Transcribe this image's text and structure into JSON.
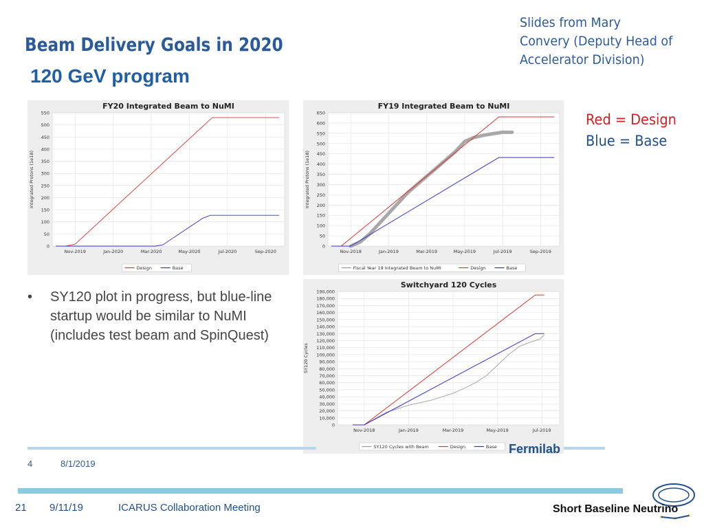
{
  "slide": {
    "title": "Beam Delivery Goals in 2020",
    "subtitle": "120 GeV program",
    "note_lines": [
      "Slides from Mary",
      "Convery (Deputy Head of",
      "Accelerator Division)"
    ],
    "legend_red": "Red = Design",
    "legend_blue": "Blue = Base",
    "bullet_symbol": "•",
    "bullet_text": "SY120 plot in progress, but blue-line startup would be similar to NuMI (includes test beam and SpinQuest)",
    "inner_footer": {
      "page": "4",
      "date": "8/1/2019",
      "logo_text": "Fermilab"
    },
    "footer": {
      "page": "21",
      "date": "9/11/19",
      "meeting": "ICARUS Collaboration Meeting",
      "logo_text": "Short Baseline Neutrino"
    }
  },
  "colors": {
    "design": "#e03030",
    "base": "#3030d0",
    "with_beam": "#999999",
    "title": "#2b5a9c"
  },
  "icons": {
    "fermilab": "fermilab-logo-icon",
    "sbn": "sbn-logo-icon"
  },
  "chart_data": [
    {
      "type": "line",
      "title": "FY20 Integrated Beam to NuMI",
      "ylabel": "Integrated Protons (1e18)",
      "xlabel": "",
      "x_ticks": [
        "Nov-2019",
        "Jan-2020",
        "Mar-2020",
        "May-2020",
        "Jul-2020",
        "Sep-2020"
      ],
      "x_tick_pos": [
        1,
        3,
        5,
        7,
        9,
        11
      ],
      "xlim": [
        -0.2,
        12
      ],
      "ylim": [
        0,
        550
      ],
      "y_ticks": [
        0,
        50,
        100,
        150,
        200,
        250,
        300,
        350,
        400,
        450,
        500,
        550
      ],
      "grid": true,
      "legend_position": "bottom",
      "legend": [
        {
          "name": "Design",
          "color": "#e03030"
        },
        {
          "name": "Base",
          "color": "#3030d0"
        }
      ],
      "series": [
        {
          "name": "Design",
          "color": "#e03030",
          "x": [
            0,
            0.5,
            1,
            8.2,
            11.7
          ],
          "y": [
            0,
            0,
            8,
            530,
            530
          ]
        },
        {
          "name": "Base",
          "color": "#3030d0",
          "x": [
            0,
            5.2,
            5.6,
            7.7,
            8.1,
            11.7
          ],
          "y": [
            0,
            0,
            5,
            115,
            127,
            127
          ]
        }
      ]
    },
    {
      "type": "line",
      "title": "FY19 Integrated Beam to NuMI",
      "ylabel": "Integrated Protons (1e18)",
      "xlabel": "",
      "x_ticks": [
        "Nov-2018",
        "Jan-2019",
        "Mar-2019",
        "May-2019",
        "Jul-2019",
        "Sep-2019"
      ],
      "x_tick_pos": [
        1,
        3,
        5,
        7,
        9,
        11
      ],
      "xlim": [
        -0.2,
        12
      ],
      "ylim": [
        0,
        650
      ],
      "y_ticks": [
        0,
        50,
        100,
        150,
        200,
        250,
        300,
        350,
        400,
        450,
        500,
        550,
        600,
        650
      ],
      "grid": true,
      "legend_position": "bottom",
      "legend": [
        {
          "name": "Fiscal Year 19 Integrated Beam to NuMI",
          "color": "#999999"
        },
        {
          "name": "Design",
          "color": "#e03030"
        },
        {
          "name": "Base",
          "color": "#3030d0"
        }
      ],
      "series": [
        {
          "name": "Fiscal Year 19 Integrated Beam to NuMI",
          "color": "#a8a8a8",
          "width": 5,
          "x": [
            1,
            1.5,
            2,
            3,
            4,
            5,
            5.5,
            6,
            6.5,
            7,
            7.5,
            8,
            8.5,
            9,
            9.5
          ],
          "y": [
            0,
            20,
            60,
            160,
            260,
            340,
            380,
            420,
            460,
            510,
            530,
            540,
            548,
            555,
            555
          ]
        },
        {
          "name": "Design",
          "color": "#e03030",
          "width": 1,
          "x": [
            0,
            0.5,
            8.8,
            11.7
          ],
          "y": [
            0,
            0,
            630,
            630
          ]
        },
        {
          "name": "Base",
          "color": "#3030d0",
          "width": 1,
          "x": [
            0,
            1,
            8.8,
            11.7
          ],
          "y": [
            0,
            0,
            432,
            432
          ]
        }
      ]
    },
    {
      "type": "line",
      "title": "Switchyard 120 Cycles",
      "ylabel": "SY120 Cycles",
      "xlabel": "",
      "x_ticks": [
        "Nov-2018",
        "Jan-2019",
        "Mar-2019",
        "May-2019",
        "Jul-2019"
      ],
      "x_tick_pos": [
        1,
        3,
        5,
        7,
        9
      ],
      "xlim": [
        -0.2,
        9.8
      ],
      "ylim": [
        0,
        190000
      ],
      "y_ticks": [
        0,
        10000,
        20000,
        30000,
        40000,
        50000,
        60000,
        70000,
        80000,
        90000,
        100000,
        110000,
        120000,
        130000,
        140000,
        150000,
        160000,
        170000,
        180000,
        190000
      ],
      "y_tick_labels": [
        "0",
        "10,000",
        "20,000",
        "30,000",
        "40,000",
        "50,000",
        "60,000",
        "70,000",
        "80,000",
        "90,000",
        "100,000",
        "110,000",
        "120,000",
        "130,000",
        "140,000",
        "150,000",
        "160,000",
        "170,000",
        "180,000",
        "190,000"
      ],
      "grid": true,
      "legend_position": "bottom",
      "legend": [
        {
          "name": "SY120 Cycles with Beam",
          "color": "#999999"
        },
        {
          "name": "Design",
          "color": "#e03030"
        },
        {
          "name": "Base",
          "color": "#3030d0"
        }
      ],
      "series": [
        {
          "name": "SY120 Cycles with Beam",
          "color": "#a8a8a8",
          "width": 1,
          "x": [
            1,
            2,
            3,
            4,
            5,
            5.5,
            6,
            6.5,
            7,
            7.5,
            8,
            8.5,
            8.9,
            9.1
          ],
          "y": [
            0,
            18000,
            28000,
            35000,
            45000,
            52000,
            60000,
            70000,
            85000,
            100000,
            112000,
            118000,
            122000,
            128000
          ]
        },
        {
          "name": "Design",
          "color": "#e03030",
          "width": 1,
          "x": [
            0.5,
            1,
            8.7,
            9.1
          ],
          "y": [
            0,
            0,
            185000,
            185000
          ]
        },
        {
          "name": "Base",
          "color": "#3030d0",
          "width": 1,
          "x": [
            0.5,
            1,
            8.7,
            9.1
          ],
          "y": [
            0,
            0,
            130000,
            130000
          ]
        }
      ]
    }
  ]
}
